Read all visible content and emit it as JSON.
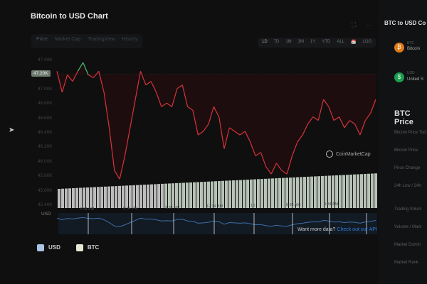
{
  "title": "Bitcoin to USD Chart",
  "tabs": [
    "Price",
    "Market Cap",
    "TradingView",
    "History"
  ],
  "ranges": [
    "1D",
    "7D",
    "1M",
    "3M",
    "1Y",
    "YTD",
    "ALL",
    "📅",
    "LOG"
  ],
  "chart_data": {
    "type": "line",
    "y_ticks": [
      "47.40K",
      "47.20K",
      "47.00K",
      "46.80K",
      "46.60K",
      "46.40K",
      "46.20K",
      "46.00K",
      "45.80K",
      "45.60K",
      "45.40K"
    ],
    "ylim": [
      45.4,
      47.4
    ],
    "reference_price": 47.2,
    "reference_label": "47.20K",
    "colors": {
      "above": "#3fbf6f",
      "below": "#d8333a",
      "navigator": "#3d6fa8"
    },
    "values": [
      47.24,
      46.95,
      47.19,
      47.1,
      47.24,
      47.36,
      47.19,
      47.15,
      47.24,
      46.95,
      46.46,
      45.87,
      45.75,
      46.07,
      46.46,
      46.85,
      47.24,
      47.05,
      47.1,
      46.95,
      46.75,
      46.8,
      46.75,
      47.0,
      47.05,
      46.75,
      46.7,
      46.36,
      46.41,
      46.51,
      46.75,
      46.61,
      46.17,
      46.46,
      46.41,
      46.36,
      46.41,
      46.26,
      46.07,
      46.12,
      45.92,
      45.82,
      45.97,
      45.87,
      45.82,
      46.07,
      46.26,
      46.36,
      46.51,
      46.61,
      46.56,
      46.85,
      46.75,
      46.56,
      46.61,
      46.46,
      46.56,
      46.51,
      46.36,
      46.56,
      46.66,
      46.85
    ],
    "x_ticks": [
      "3:34 PM",
      "6:34 PM",
      "9:34 PM",
      "12:34 AM",
      "18",
      "6:34 AM",
      "9:34 AM"
    ],
    "y_label": "USD"
  },
  "watermark": "CoinMarketCap",
  "more_data": {
    "text": "Want more data?",
    "link": "Check out our API"
  },
  "legend": [
    {
      "label": "USD",
      "color": "#a9c4e4"
    },
    {
      "label": "BTC",
      "color": "#e9e6d6"
    }
  ],
  "sidebar": {
    "title": "BTC to USD Co",
    "coins": [
      {
        "symbol": "BTC",
        "name": "Bitcoin",
        "color": "#e07a18",
        "glyph": "₿"
      },
      {
        "symbol": "USD",
        "name": "United S",
        "color": "#1b9c4e",
        "glyph": "$"
      }
    ],
    "stats_title": "BTC Price",
    "stats": [
      "Bitcoin Price Tod",
      "Bitcoin Price",
      "Price Change",
      "24h Low / 24h",
      "Trading Volum",
      "Volume / Mark",
      "Market Domin",
      "Market Rank"
    ]
  }
}
